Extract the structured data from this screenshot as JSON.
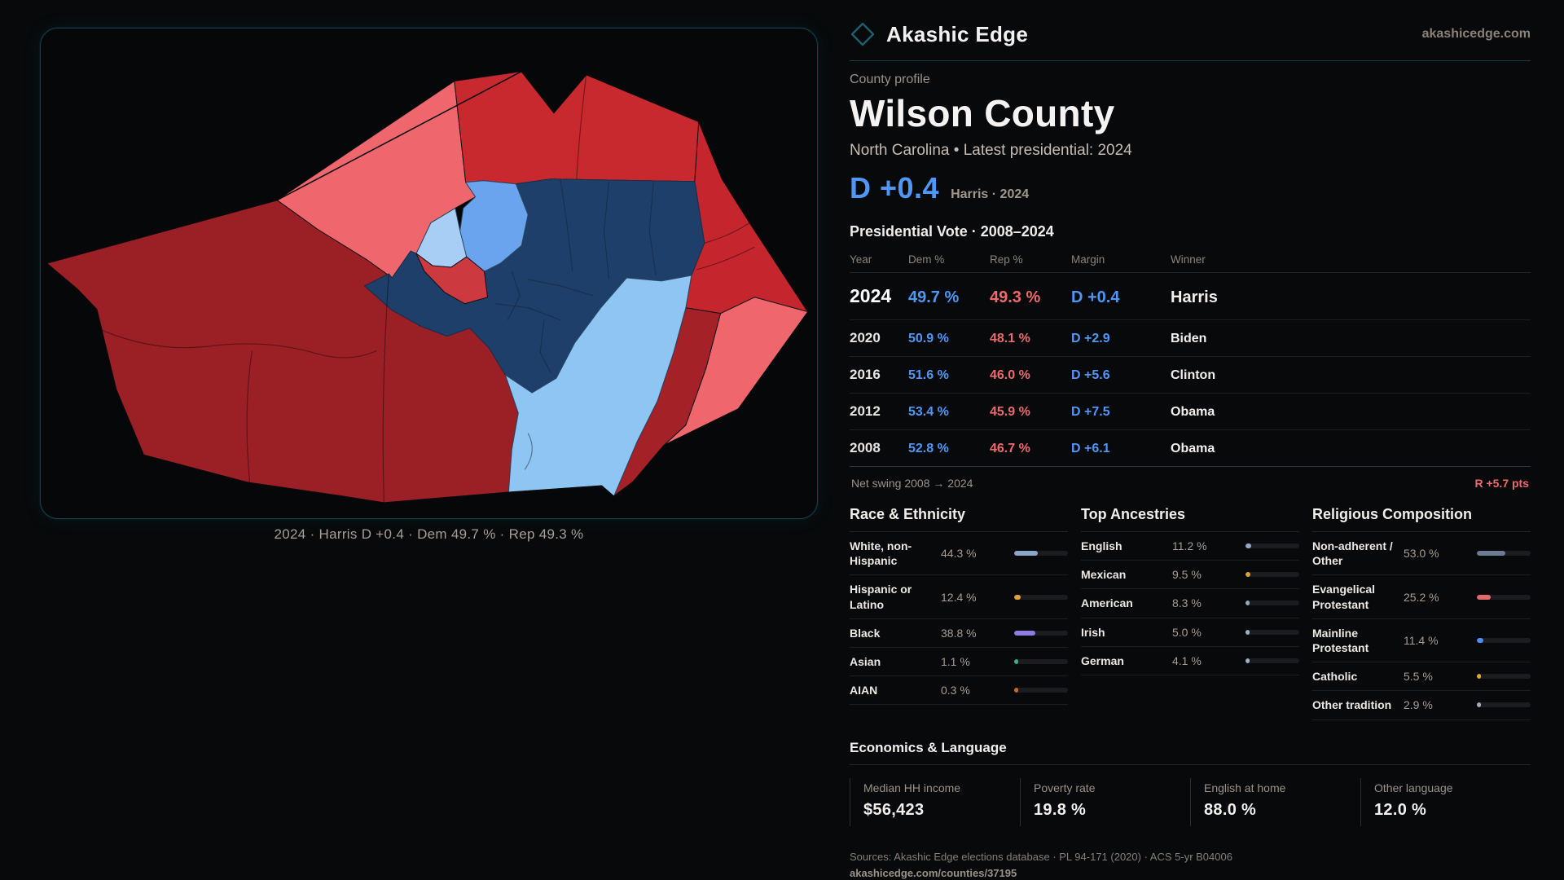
{
  "brand": {
    "name": "Akashic Edge",
    "domain": "akashicedge.com",
    "logo_icon": "diamond-outline"
  },
  "profile": {
    "kicker": "County profile",
    "title": "Wilson County",
    "subtitle": "North Carolina • Latest presidential: 2024",
    "lead_margin": "D +0.4",
    "lead_note": "Harris · 2024"
  },
  "votes": {
    "title": "Presidential Vote · 2008–2024",
    "headers": {
      "year": "Year",
      "dem": "Dem %",
      "rep": "Rep %",
      "margin": "Margin",
      "winner": "Winner"
    },
    "rows": [
      {
        "year": "2024",
        "dem": "49.7 %",
        "rep": "49.3 %",
        "margin": "D +0.4",
        "winner": "Harris"
      },
      {
        "year": "2020",
        "dem": "50.9 %",
        "rep": "48.1 %",
        "margin": "D +2.9",
        "winner": "Biden"
      },
      {
        "year": "2016",
        "dem": "51.6 %",
        "rep": "46.0 %",
        "margin": "D +5.6",
        "winner": "Clinton"
      },
      {
        "year": "2012",
        "dem": "53.4 %",
        "rep": "45.9 %",
        "margin": "D +7.5",
        "winner": "Obama"
      },
      {
        "year": "2008",
        "dem": "52.8 %",
        "rep": "46.7 %",
        "margin": "D +6.1",
        "winner": "Obama"
      }
    ],
    "net_swing_label": "Net swing 2008 → 2024",
    "net_swing_value": "R +5.7 pts"
  },
  "race": {
    "title": "Race & Ethnicity",
    "rows": [
      {
        "label": "White, non-Hispanic",
        "value": "44.3 %",
        "pct": 44.3,
        "color": "#8ba6c6"
      },
      {
        "label": "Hispanic or Latino",
        "value": "12.4 %",
        "pct": 12.4,
        "color": "#e3a034"
      },
      {
        "label": "Black",
        "value": "38.8 %",
        "pct": 38.8,
        "color": "#8f7ce3"
      },
      {
        "label": "Asian",
        "value": "1.1 %",
        "pct": 1.1,
        "color": "#3fae7e"
      },
      {
        "label": "AIAN",
        "value": "0.3 %",
        "pct": 0.3,
        "color": "#c96a2a"
      }
    ]
  },
  "ancestries": {
    "title": "Top Ancestries",
    "rows": [
      {
        "label": "English",
        "value": "11.2 %",
        "pct": 11.2,
        "color": "#93a9c6"
      },
      {
        "label": "Mexican",
        "value": "9.5 %",
        "pct": 9.5,
        "color": "#e3a238"
      },
      {
        "label": "American",
        "value": "8.3 %",
        "pct": 8.3,
        "color": "#93a9c6"
      },
      {
        "label": "Irish",
        "value": "5.0 %",
        "pct": 5.0,
        "color": "#9fb3cc"
      },
      {
        "label": "German",
        "value": "4.1 %",
        "pct": 4.1,
        "color": "#9fb3cc"
      }
    ]
  },
  "religion": {
    "title": "Religious Composition",
    "rows": [
      {
        "label": "Non-adherent / Other",
        "value": "53.0 %",
        "pct": 53.0,
        "color": "#6b7b93"
      },
      {
        "label": "Evangelical Protestant",
        "value": "25.2 %",
        "pct": 25.2,
        "color": "#e06a6e"
      },
      {
        "label": "Mainline Protestant",
        "value": "11.4 %",
        "pct": 11.4,
        "color": "#4c8ef0"
      },
      {
        "label": "Catholic",
        "value": "5.5 %",
        "pct": 5.5,
        "color": "#ddaa2f"
      },
      {
        "label": "Other tradition",
        "value": "2.9 %",
        "pct": 2.9,
        "color": "#a8adb5"
      }
    ]
  },
  "economics": {
    "title": "Economics & Language",
    "stats": [
      {
        "label": "Median HH income",
        "value": "$56,423"
      },
      {
        "label": "Poverty rate",
        "value": "19.8 %"
      },
      {
        "label": "English at home",
        "value": "88.0 %"
      },
      {
        "label": "Other language",
        "value": "12.0 %"
      }
    ]
  },
  "sources": {
    "line1": "Sources: Akashic Edge elections database · PL 94-171 (2020) · ACS 5-yr B04006",
    "line2": "akashicedge.com/counties/37195"
  },
  "map": {
    "caption": "2024 · Harris D +0.4 · Dem 49.7 % · Rep 49.3 %",
    "palette": {
      "strong_rep": "#9b2026",
      "rep": "#c8292f",
      "lean_rep": "#ef676c",
      "strong_dem": "#1e3f69",
      "dem": "#6ba4ee",
      "lean_dem": "#8ec5f3",
      "panel_border_teal": "#11414b"
    }
  }
}
